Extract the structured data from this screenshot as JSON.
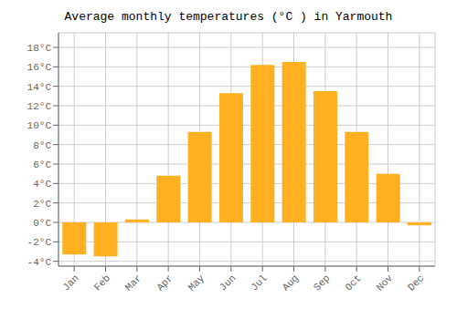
{
  "chart_data": {
    "type": "bar",
    "title": "Average monthly temperatures (°C ) in Yarmouth",
    "categories": [
      "Jan",
      "Feb",
      "Mar",
      "Apr",
      "May",
      "Jun",
      "Jul",
      "Aug",
      "Sep",
      "Oct",
      "Nov",
      "Dec"
    ],
    "values": [
      -3.3,
      -3.5,
      0.3,
      4.8,
      9.3,
      13.3,
      16.2,
      16.5,
      13.5,
      9.3,
      5.0,
      -0.3
    ],
    "color": "#FFB020",
    "ylim": [
      -4.5,
      19.5
    ],
    "yticks": [
      {
        "value": -4,
        "label": "-4°C"
      },
      {
        "value": -2,
        "label": "-2°C"
      },
      {
        "value": 0,
        "label": "0°C"
      },
      {
        "value": 2,
        "label": "2°C"
      },
      {
        "value": 4,
        "label": "4°C"
      },
      {
        "value": 6,
        "label": "6°C"
      },
      {
        "value": 8,
        "label": "8°C"
      },
      {
        "value": 10,
        "label": "10°C"
      },
      {
        "value": 12,
        "label": "12°C"
      },
      {
        "value": 14,
        "label": "14°C"
      },
      {
        "value": 16,
        "label": "16°C"
      },
      {
        "value": 18,
        "label": "18°C"
      }
    ],
    "grid": true
  }
}
